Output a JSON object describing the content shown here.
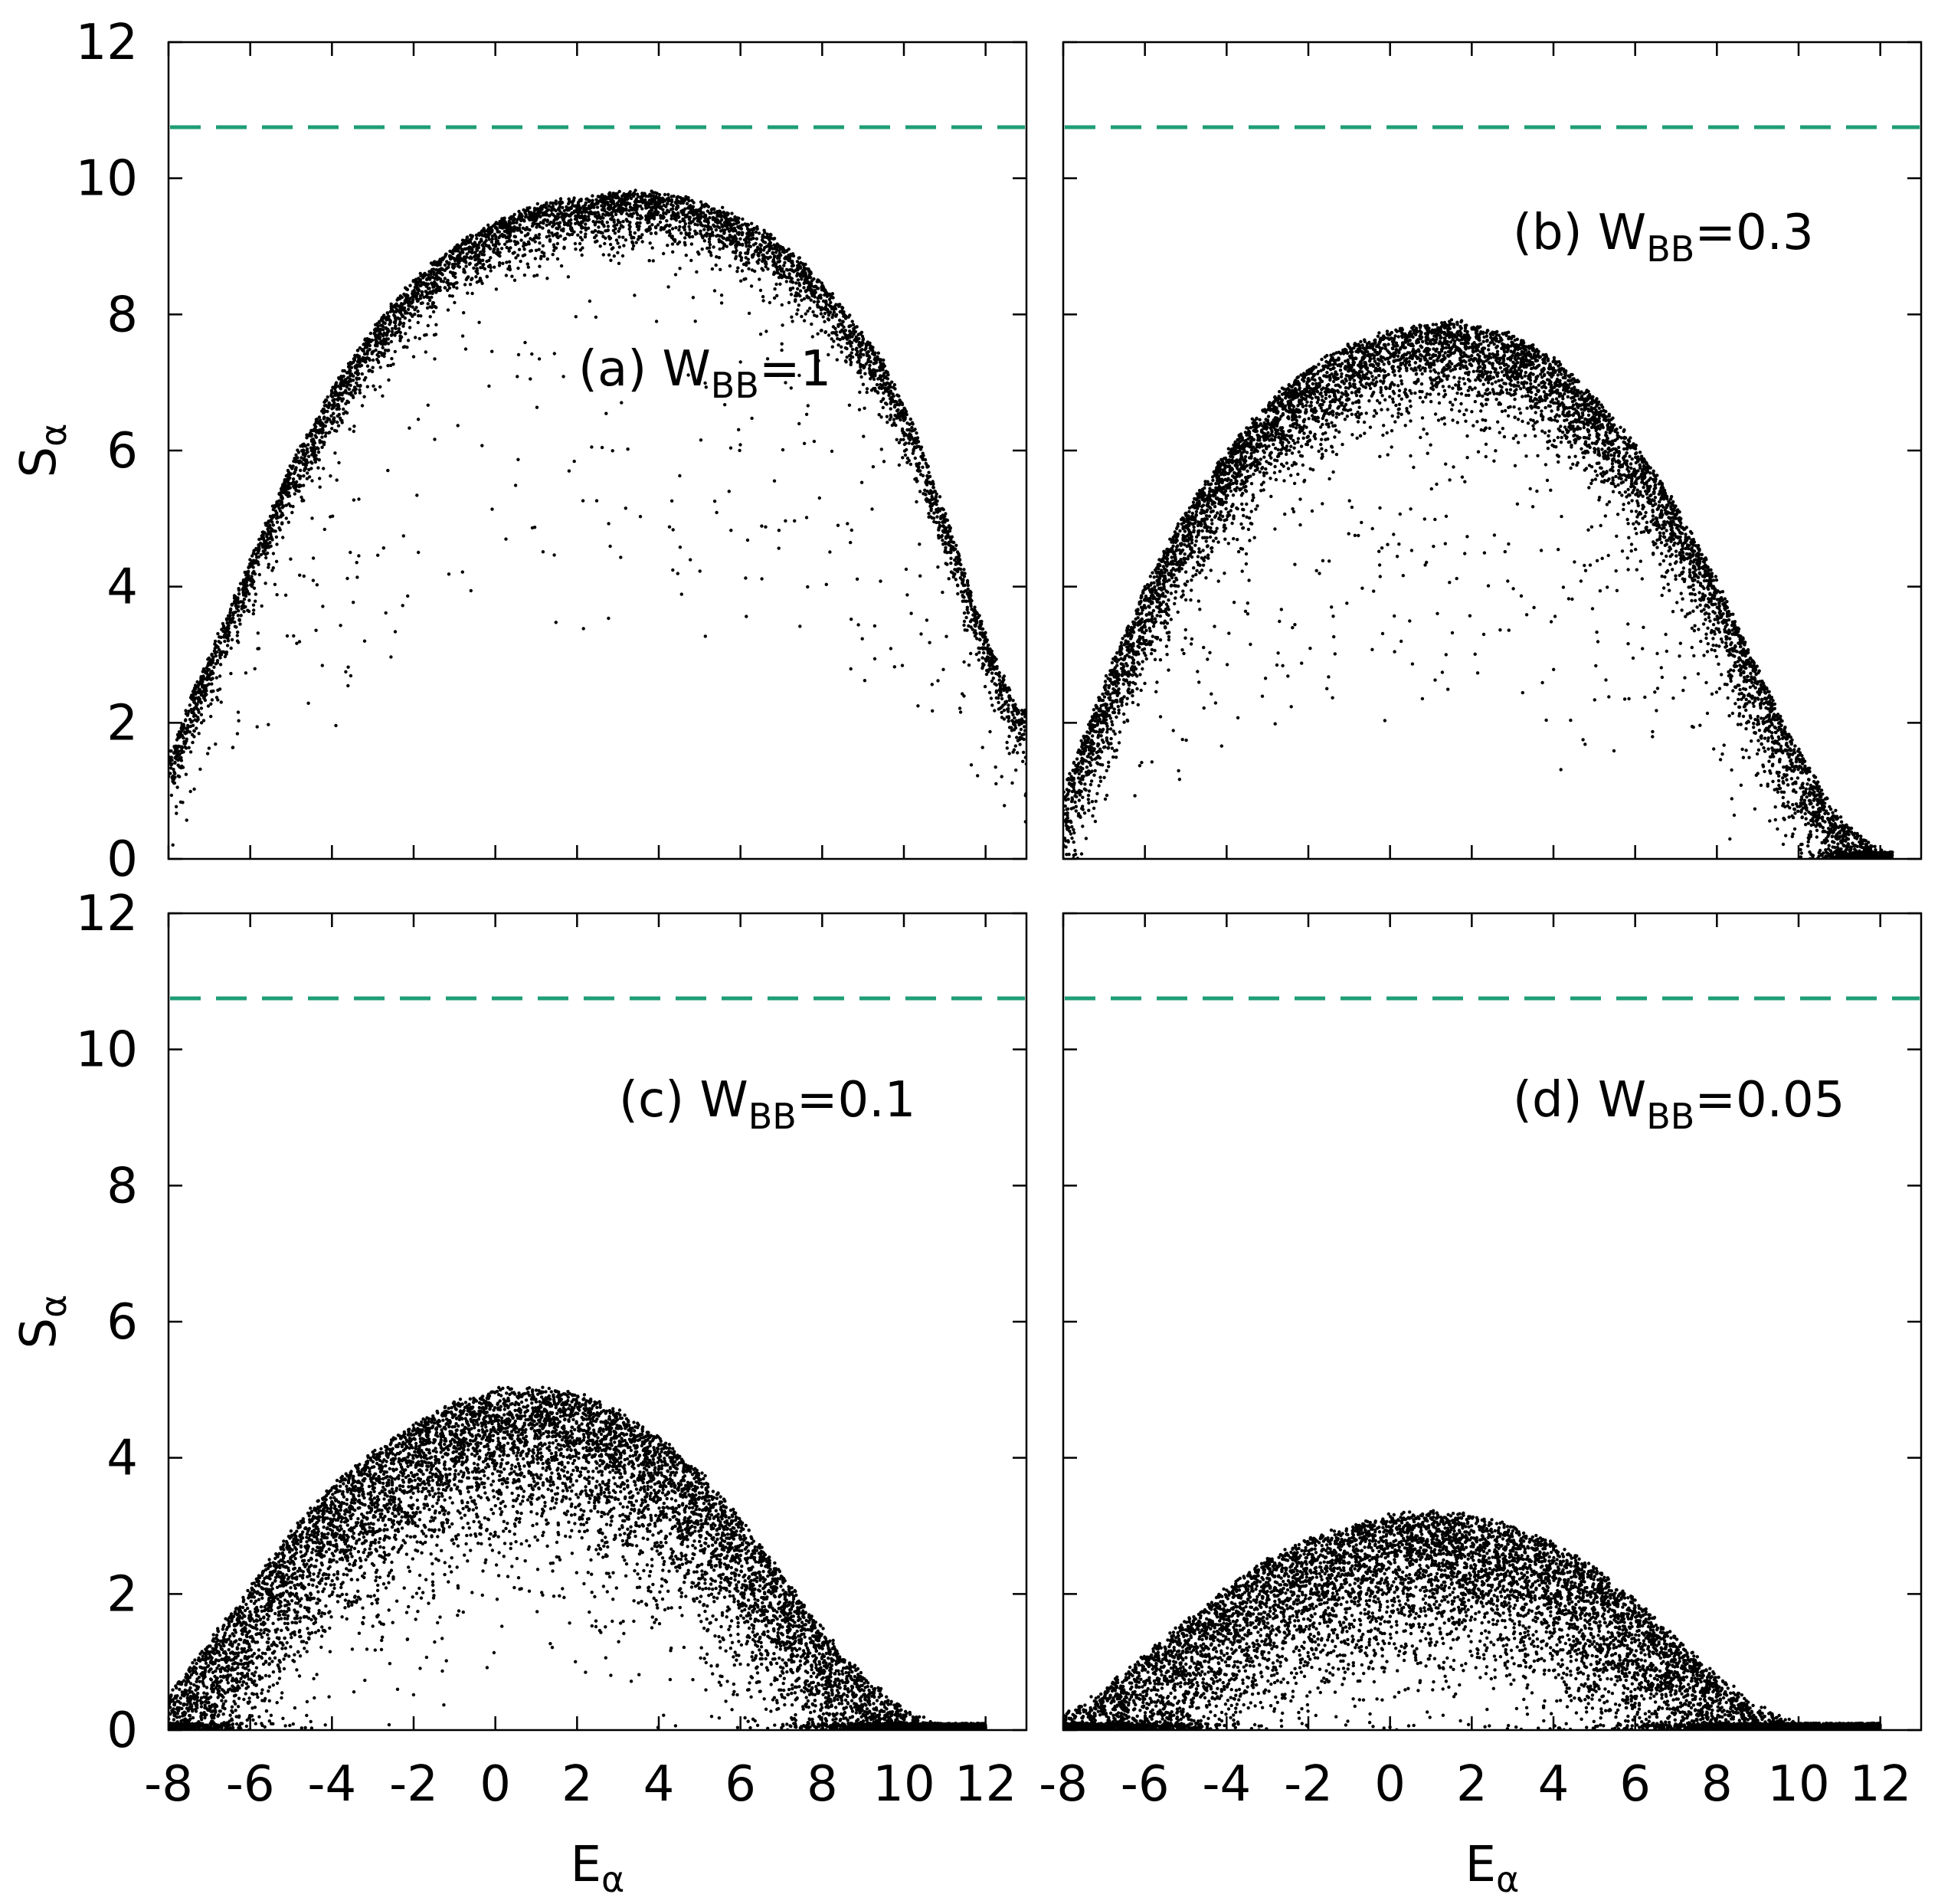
{
  "chart_data": {
    "type": "scatter",
    "layout": "2x2 grid",
    "xlabel": {
      "main": "E",
      "sub": "α"
    },
    "ylabel": {
      "main": "S",
      "sub": "α"
    },
    "xlim": [
      -8,
      13
    ],
    "ylim": [
      0,
      12
    ],
    "xticks": [
      -8,
      -6,
      -4,
      -2,
      0,
      2,
      4,
      6,
      8,
      10,
      12
    ],
    "yticks": [
      0,
      2,
      4,
      6,
      8,
      10,
      12
    ],
    "marker_color": "#000000",
    "reference_line": {
      "y": 10.75,
      "style": "dashed",
      "color": "#1f9e76"
    },
    "panels": [
      {
        "id": "a",
        "label": {
          "prefix": "(a) W",
          "sub": "BB",
          "suffix": "=1"
        },
        "series": {
          "name": "W_BB=1",
          "x_range": [
            -8,
            13
          ],
          "points": [
            {
              "x": -7.9,
              "y": 1.6
            },
            {
              "x": -7.5,
              "y": 2.3
            },
            {
              "x": -7.0,
              "y": 3.0
            },
            {
              "x": -6.5,
              "y": 3.7
            },
            {
              "x": -6.0,
              "y": 4.4
            },
            {
              "x": -5.5,
              "y": 5.1
            },
            {
              "x": -5.0,
              "y": 5.8
            },
            {
              "x": -4.0,
              "y": 6.9
            },
            {
              "x": -3.0,
              "y": 7.8
            },
            {
              "x": -2.0,
              "y": 8.5
            },
            {
              "x": -1.0,
              "y": 9.0
            },
            {
              "x": 0.0,
              "y": 9.35
            },
            {
              "x": 1.0,
              "y": 9.6
            },
            {
              "x": 2.0,
              "y": 9.72
            },
            {
              "x": 3.0,
              "y": 9.78
            },
            {
              "x": 3.6,
              "y": 9.8
            },
            {
              "x": 4.5,
              "y": 9.75
            },
            {
              "x": 5.5,
              "y": 9.55
            },
            {
              "x": 6.5,
              "y": 9.25
            },
            {
              "x": 7.5,
              "y": 8.8
            },
            {
              "x": 8.5,
              "y": 8.1
            },
            {
              "x": 9.5,
              "y": 7.3
            },
            {
              "x": 10.3,
              "y": 6.3
            },
            {
              "x": 11.0,
              "y": 5.1
            },
            {
              "x": 11.6,
              "y": 4.0
            },
            {
              "x": 12.2,
              "y": 3.0
            },
            {
              "x": 12.8,
              "y": 2.2
            }
          ],
          "band_spread": 0.35,
          "point_count": 5000
        }
      },
      {
        "id": "b",
        "label": {
          "prefix": "(b) W",
          "sub": "BB",
          "suffix": "=0.3"
        },
        "series": {
          "name": "W_BB=0.3",
          "x_range": [
            -8,
            12.3
          ],
          "points": [
            {
              "x": -8.0,
              "y": 1.0
            },
            {
              "x": -7.5,
              "y": 1.8
            },
            {
              "x": -7.0,
              "y": 2.6
            },
            {
              "x": -6.0,
              "y": 4.0
            },
            {
              "x": -5.0,
              "y": 5.1
            },
            {
              "x": -4.0,
              "y": 6.0
            },
            {
              "x": -3.0,
              "y": 6.7
            },
            {
              "x": -2.0,
              "y": 7.2
            },
            {
              "x": -1.0,
              "y": 7.55
            },
            {
              "x": 0.0,
              "y": 7.75
            },
            {
              "x": 1.0,
              "y": 7.85
            },
            {
              "x": 1.7,
              "y": 7.9
            },
            {
              "x": 3.0,
              "y": 7.7
            },
            {
              "x": 4.0,
              "y": 7.35
            },
            {
              "x": 5.0,
              "y": 6.8
            },
            {
              "x": 6.0,
              "y": 6.1
            },
            {
              "x": 7.0,
              "y": 5.2
            },
            {
              "x": 8.0,
              "y": 4.1
            },
            {
              "x": 9.0,
              "y": 2.8
            },
            {
              "x": 10.0,
              "y": 1.6
            },
            {
              "x": 11.0,
              "y": 0.6
            },
            {
              "x": 12.0,
              "y": 0.1
            }
          ],
          "band_spread": 0.6,
          "point_count": 7000
        }
      },
      {
        "id": "c",
        "label": {
          "prefix": "(c) W",
          "sub": "BB",
          "suffix": "=0.1"
        },
        "series": {
          "name": "W_BB=0.1",
          "x_range": [
            -8,
            12
          ],
          "points": [
            {
              "x": -8.0,
              "y": 0.5
            },
            {
              "x": -7.0,
              "y": 1.3
            },
            {
              "x": -6.0,
              "y": 2.1
            },
            {
              "x": -5.0,
              "y": 2.9
            },
            {
              "x": -4.0,
              "y": 3.6
            },
            {
              "x": -3.0,
              "y": 4.1
            },
            {
              "x": -2.0,
              "y": 4.5
            },
            {
              "x": -1.0,
              "y": 4.8
            },
            {
              "x": 0.0,
              "y": 5.0
            },
            {
              "x": 0.8,
              "y": 5.05
            },
            {
              "x": 2.0,
              "y": 4.95
            },
            {
              "x": 3.0,
              "y": 4.7
            },
            {
              "x": 4.0,
              "y": 4.3
            },
            {
              "x": 5.0,
              "y": 3.8
            },
            {
              "x": 6.0,
              "y": 3.1
            },
            {
              "x": 7.0,
              "y": 2.3
            },
            {
              "x": 8.0,
              "y": 1.5
            },
            {
              "x": 9.0,
              "y": 0.8
            },
            {
              "x": 10.0,
              "y": 0.3
            },
            {
              "x": 11.0,
              "y": 0.05
            }
          ],
          "band_spread": 1.0,
          "point_count": 9000
        }
      },
      {
        "id": "d",
        "label": {
          "prefix": "(d) W",
          "sub": "BB",
          "suffix": "=0.05"
        },
        "series": {
          "name": "W_BB=0.05",
          "x_range": [
            -8,
            12
          ],
          "points": [
            {
              "x": -8.0,
              "y": 0.2
            },
            {
              "x": -7.0,
              "y": 0.6
            },
            {
              "x": -6.0,
              "y": 1.1
            },
            {
              "x": -5.0,
              "y": 1.6
            },
            {
              "x": -4.0,
              "y": 2.1
            },
            {
              "x": -3.0,
              "y": 2.5
            },
            {
              "x": -2.0,
              "y": 2.8
            },
            {
              "x": -1.0,
              "y": 3.0
            },
            {
              "x": 0.0,
              "y": 3.15
            },
            {
              "x": 1.0,
              "y": 3.2
            },
            {
              "x": 2.0,
              "y": 3.15
            },
            {
              "x": 3.0,
              "y": 3.0
            },
            {
              "x": 4.0,
              "y": 2.75
            },
            {
              "x": 5.0,
              "y": 2.4
            },
            {
              "x": 6.0,
              "y": 1.9
            },
            {
              "x": 7.0,
              "y": 1.35
            },
            {
              "x": 8.0,
              "y": 0.8
            },
            {
              "x": 9.0,
              "y": 0.35
            },
            {
              "x": 10.0,
              "y": 0.1
            },
            {
              "x": 11.0,
              "y": 0.0
            }
          ],
          "band_spread": 1.0,
          "point_count": 9000
        }
      }
    ]
  }
}
